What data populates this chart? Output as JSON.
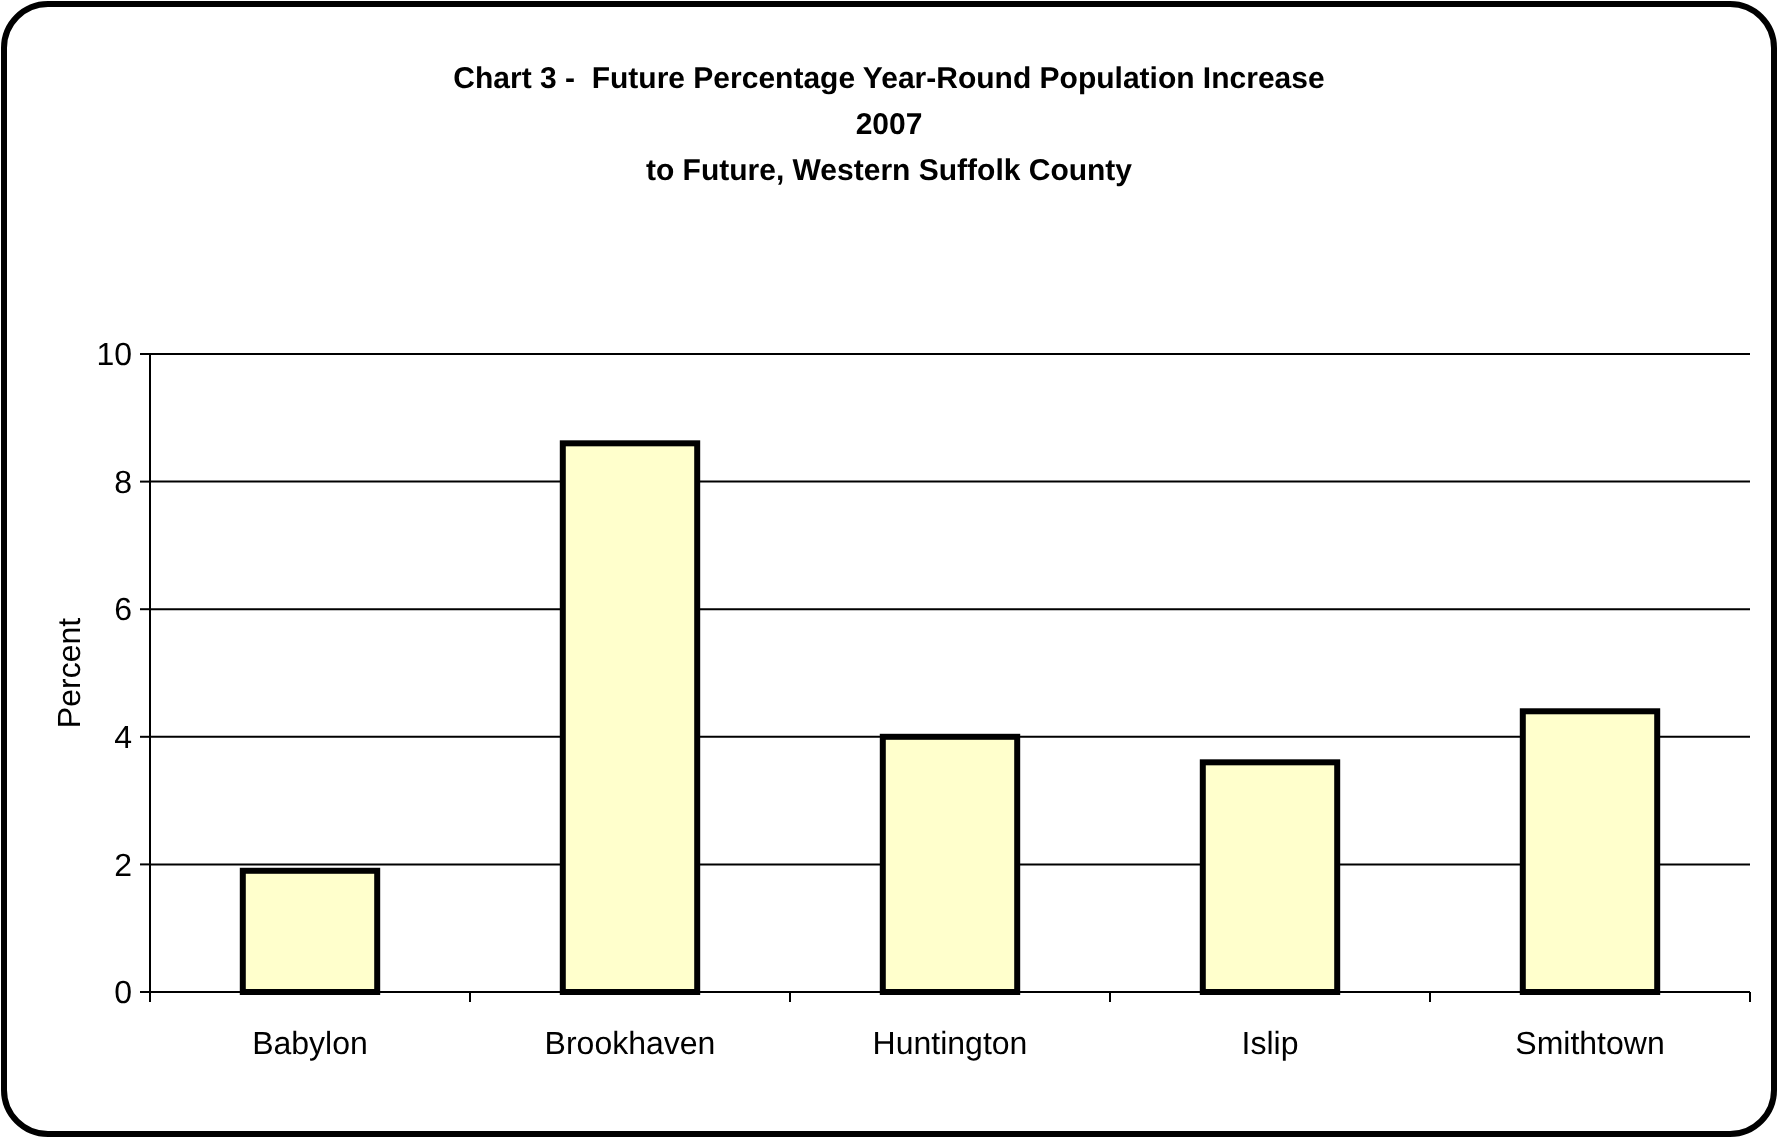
{
  "chart_data": {
    "type": "bar",
    "title": "Chart 3 -  Future Percentage Year-Round Population Increase\n2007\nto Future, Western Suffolk County",
    "ylabel": "Percent",
    "categories": [
      "Babylon",
      "Brookhaven",
      "Huntington",
      "Islip",
      "Smithtown"
    ],
    "values": [
      1.9,
      8.6,
      4.0,
      3.6,
      4.4
    ],
    "color": "#ffffcc",
    "ylim": [
      0,
      10
    ],
    "yticks": [
      0,
      2,
      4,
      6,
      8,
      10
    ],
    "grid": "y"
  }
}
